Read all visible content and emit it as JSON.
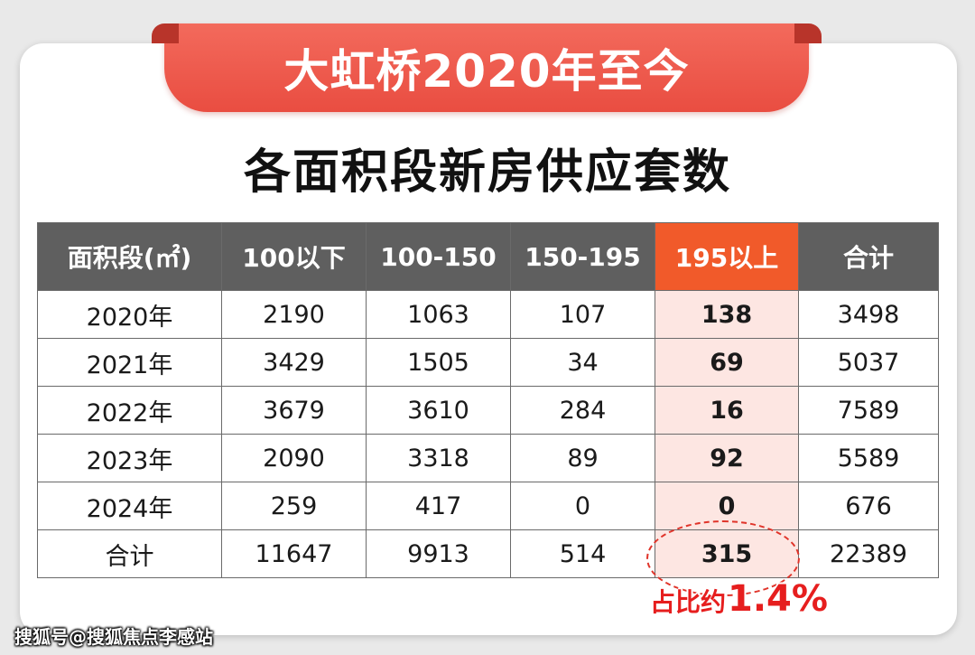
{
  "banner": {
    "title": "大虹桥2020年至今"
  },
  "subtitle": "各面积段新房供应套数",
  "table": {
    "headers": [
      "面积段(㎡)",
      "100以下",
      "100-150",
      "150-195",
      "195以上",
      "合计"
    ],
    "highlight_column_index": 4,
    "rows": [
      [
        "2020年",
        "2190",
        "1063",
        "107",
        "138",
        "3498"
      ],
      [
        "2021年",
        "3429",
        "1505",
        "34",
        "69",
        "5037"
      ],
      [
        "2022年",
        "3679",
        "3610",
        "284",
        "16",
        "7589"
      ],
      [
        "2023年",
        "2090",
        "3318",
        "89",
        "92",
        "5589"
      ],
      [
        "2024年",
        "259",
        "417",
        "0",
        "0",
        "676"
      ],
      [
        "合计",
        "11647",
        "9913",
        "514",
        "315",
        "22389"
      ]
    ]
  },
  "annotation": {
    "prefix": "占比约",
    "value": "1.4%"
  },
  "watermark": "搜狐号@搜狐焦点李感站",
  "colors": {
    "banner": "#ec5548",
    "header": "#5f5f5f",
    "highlight_header": "#f15a2a",
    "highlight_cell": "#fde6e2",
    "annotation": "#e61e1e"
  }
}
